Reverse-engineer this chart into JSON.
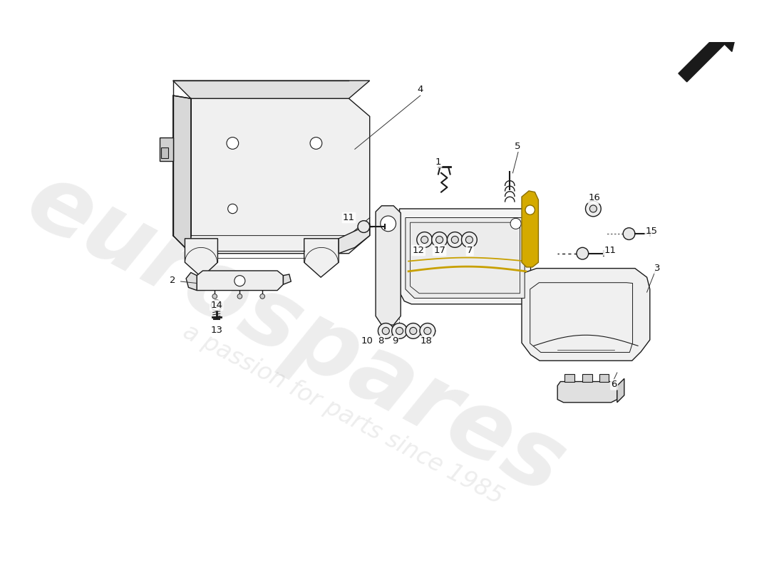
{
  "background_color": "#ffffff",
  "line_color": "#1a1a1a",
  "watermark_text1": "eurospares",
  "watermark_text2": "a passion for parts since 1985",
  "watermark_color": "#b0b0b0",
  "watermark_alpha": 0.22,
  "label_fontsize": 9.5,
  "lw": 1.0
}
